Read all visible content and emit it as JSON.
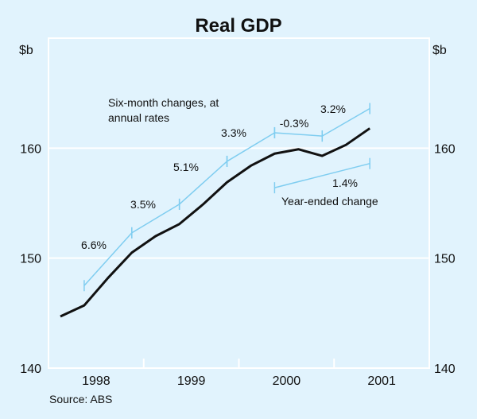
{
  "chart_data": {
    "type": "line",
    "title": "Real GDP",
    "ylabel_left": "$b",
    "ylabel_right": "$b",
    "ylim": [
      140,
      170
    ],
    "yticks": [
      140,
      150,
      160
    ],
    "ytick_labels": [
      "140",
      "150",
      "160"
    ],
    "xlim": [
      1997.5,
      2001.5
    ],
    "xtick_labels": [
      "1998",
      "1999",
      "2000",
      "2001"
    ],
    "grid": true,
    "source": "Source: ABS",
    "series": [
      {
        "name": "Real GDP",
        "color": "#111111",
        "x": [
          1997.625,
          1997.875,
          1998.125,
          1998.375,
          1998.625,
          1998.875,
          1999.125,
          1999.375,
          1999.625,
          1999.875,
          2000.125,
          2000.375,
          2000.625,
          2000.875
        ],
        "values": [
          144.7,
          145.7,
          148.2,
          150.5,
          152.0,
          153.1,
          154.9,
          156.9,
          158.4,
          159.5,
          159.9,
          159.3,
          160.3,
          161.8
        ]
      }
    ],
    "annotations": {
      "six_month_label": [
        "Six-month changes, at",
        "annual rates"
      ],
      "six_month_segments": [
        {
          "label": "6.6%",
          "x0": 1997.875,
          "x1": 1998.375,
          "y0": 147.5,
          "y1": 152.3
        },
        {
          "label": "3.5%",
          "x0": 1998.375,
          "x1": 1998.875,
          "y0": 152.3,
          "y1": 154.9
        },
        {
          "label": "5.1%",
          "x0": 1998.875,
          "x1": 1999.375,
          "y0": 154.9,
          "y1": 158.8
        },
        {
          "label": "3.3%",
          "x0": 1999.375,
          "x1": 1999.875,
          "y0": 158.8,
          "y1": 161.4
        },
        {
          "label": "-0.3%",
          "x0": 1999.875,
          "x1": 2000.375,
          "y0": 161.4,
          "y1": 161.1
        },
        {
          "label": "3.2%",
          "x0": 2000.375,
          "x1": 2000.875,
          "y0": 161.1,
          "y1": 163.6
        }
      ],
      "year_ended_label": "Year-ended change",
      "year_ended_segment": {
        "label": "1.4%",
        "x0": 1999.875,
        "x1": 2000.875,
        "y0": 156.4,
        "y1": 158.6
      }
    },
    "colors": {
      "background": "#e1f3fd",
      "grid": "#ffffff",
      "line": "#111111",
      "annotation": "#7fcdf0"
    }
  }
}
